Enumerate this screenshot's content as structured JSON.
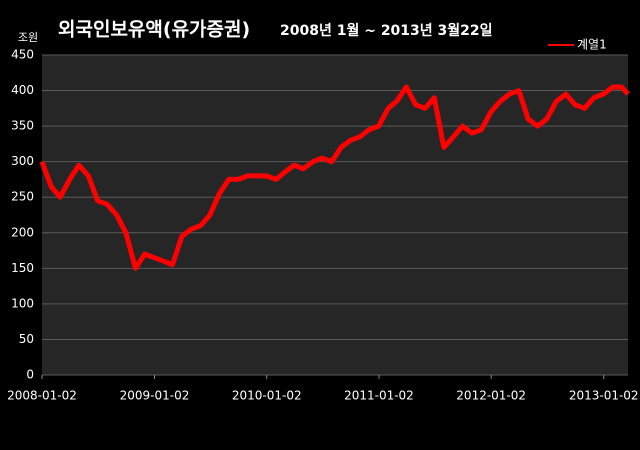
{
  "chart_data": {
    "type": "line",
    "title": "외국인보유액(유가증권)",
    "subtitle": "2008년 1월 ~ 2013년 3월22일",
    "y_label": "조원",
    "x": [
      "2008-01-02",
      "2008-02-01",
      "2008-03-01",
      "2008-04-01",
      "2008-05-01",
      "2008-06-01",
      "2008-07-01",
      "2008-08-01",
      "2008-09-01",
      "2008-10-01",
      "2008-11-01",
      "2008-12-01",
      "2009-01-01",
      "2009-02-01",
      "2009-03-01",
      "2009-04-01",
      "2009-05-01",
      "2009-06-01",
      "2009-07-01",
      "2009-08-01",
      "2009-09-01",
      "2009-10-01",
      "2009-11-01",
      "2009-12-01",
      "2010-01-01",
      "2010-02-01",
      "2010-03-01",
      "2010-04-01",
      "2010-05-01",
      "2010-06-01",
      "2010-07-01",
      "2010-08-01",
      "2010-09-01",
      "2010-10-01",
      "2010-11-01",
      "2010-12-01",
      "2011-01-01",
      "2011-02-01",
      "2011-03-01",
      "2011-04-01",
      "2011-05-01",
      "2011-06-01",
      "2011-07-01",
      "2011-08-01",
      "2011-09-01",
      "2011-10-01",
      "2011-11-01",
      "2011-12-01",
      "2012-01-01",
      "2012-02-01",
      "2012-03-01",
      "2012-04-01",
      "2012-05-01",
      "2012-06-01",
      "2012-07-01",
      "2012-08-01",
      "2012-09-01",
      "2012-10-01",
      "2012-11-01",
      "2012-12-01",
      "2013-01-01",
      "2013-02-01",
      "2013-03-01",
      "2013-03-22"
    ],
    "series": [
      {
        "name": "계열1",
        "color": "#ff0000",
        "values": [
          300,
          265,
          250,
          275,
          295,
          280,
          245,
          240,
          225,
          200,
          150,
          170,
          165,
          160,
          155,
          195,
          205,
          210,
          225,
          255,
          275,
          275,
          280,
          280,
          280,
          275,
          285,
          295,
          290,
          300,
          305,
          300,
          320,
          330,
          335,
          345,
          350,
          375,
          385,
          405,
          380,
          375,
          390,
          320,
          335,
          350,
          340,
          345,
          370,
          385,
          395,
          400,
          360,
          350,
          360,
          385,
          395,
          380,
          375,
          390,
          395,
          405,
          405,
          395
        ]
      }
    ],
    "xlim": [
      "2008-01-02",
      "2013-03-22"
    ],
    "xticks": [
      "2008-01-02",
      "2009-01-02",
      "2010-01-02",
      "2011-01-02",
      "2012-01-02",
      "2013-01-02"
    ],
    "ylim": [
      0,
      450
    ],
    "yticks": [
      0,
      50,
      100,
      150,
      200,
      250,
      300,
      350,
      400,
      450
    ],
    "grid": true,
    "legend": "top-right"
  }
}
